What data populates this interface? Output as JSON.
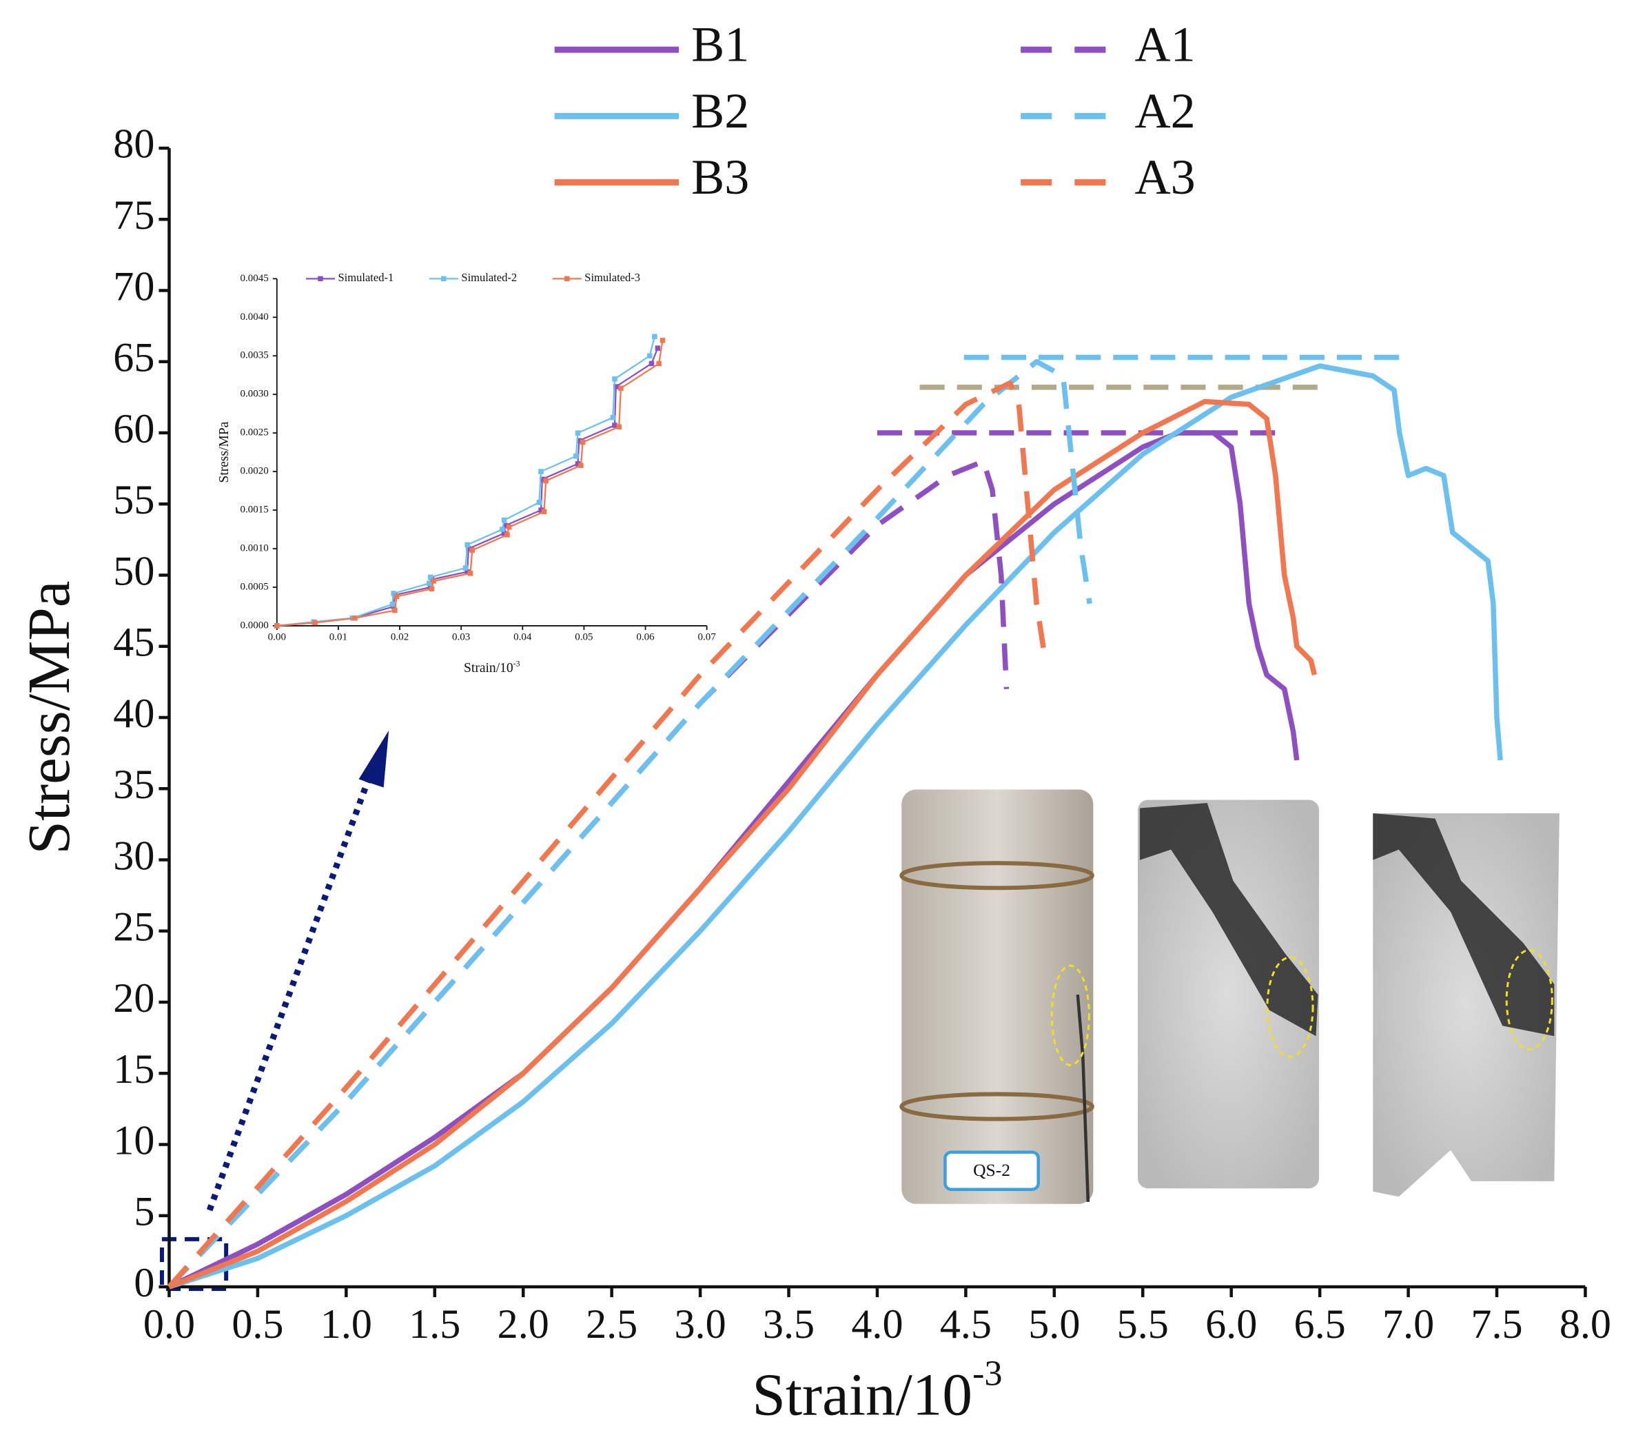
{
  "chart_data": [
    {
      "type": "line",
      "x_label": "Strain/10",
      "x_label_sup": "-3",
      "y_label": "Stress/MPa",
      "xlim": [
        0,
        8
      ],
      "ylim": [
        0,
        80
      ],
      "xticks": [
        {
          "value": 0,
          "label": "0.0"
        },
        {
          "value": 0.5,
          "label": "0.5"
        },
        {
          "value": 1,
          "label": "1.0"
        },
        {
          "value": 1.5,
          "label": "1.5"
        },
        {
          "value": 2,
          "label": "2.0"
        },
        {
          "value": 2.5,
          "label": "2.5"
        },
        {
          "value": 3,
          "label": "3.0"
        },
        {
          "value": 3.5,
          "label": "3.5"
        },
        {
          "value": 4,
          "label": "4.0"
        },
        {
          "value": 4.5,
          "label": "4.5"
        },
        {
          "value": 5,
          "label": "5.0"
        },
        {
          "value": 5.5,
          "label": "5.5"
        },
        {
          "value": 6,
          "label": "6.0"
        },
        {
          "value": 6.5,
          "label": "6.5"
        },
        {
          "value": 7,
          "label": "7.0"
        },
        {
          "value": 7.5,
          "label": "7.5"
        },
        {
          "value": 8,
          "label": "8.0"
        }
      ],
      "yticks": [
        0,
        5,
        10,
        15,
        20,
        25,
        30,
        35,
        40,
        45,
        50,
        55,
        60,
        65,
        70,
        75,
        80
      ],
      "series": [
        {
          "name": "B1",
          "color": "#8e4fc0",
          "dashed": false,
          "x": [
            0,
            0.5,
            1,
            1.5,
            2,
            2.5,
            3,
            3.5,
            4,
            4.5,
            5,
            5.5,
            5.7,
            5.9,
            6.0,
            6.05,
            6.1,
            6.15,
            6.2,
            6.3,
            6.35,
            6.37
          ],
          "values": [
            0,
            3,
            6.5,
            10.5,
            15,
            21,
            28,
            35.5,
            43,
            50,
            55,
            59,
            60,
            60,
            59,
            55,
            48,
            45,
            43,
            42,
            39,
            37
          ]
        },
        {
          "name": "B2",
          "color": "#6cc0ee",
          "dashed": false,
          "x": [
            0,
            0.5,
            1,
            1.5,
            2,
            2.5,
            3,
            3.5,
            4,
            4.5,
            5,
            5.5,
            6,
            6.5,
            6.8,
            6.92,
            6.95,
            7.0,
            7.1,
            7.2,
            7.25,
            7.35,
            7.45,
            7.48,
            7.5,
            7.52
          ],
          "values": [
            0,
            2,
            5,
            8.5,
            13,
            18.5,
            25,
            32,
            39.5,
            46.5,
            53,
            58.5,
            62.5,
            64.7,
            64,
            63,
            60,
            57,
            57.5,
            57,
            53,
            52,
            51,
            48,
            40,
            37
          ]
        },
        {
          "name": "B3",
          "color": "#f07850",
          "dashed": false,
          "x": [
            0,
            0.5,
            1,
            1.5,
            2,
            2.5,
            3,
            3.5,
            4,
            4.5,
            5,
            5.5,
            5.85,
            6.1,
            6.2,
            6.25,
            6.3,
            6.35,
            6.37,
            6.45,
            6.47
          ],
          "values": [
            0,
            2.5,
            6,
            10,
            15,
            21,
            28,
            35,
            43,
            50,
            56,
            60,
            62.2,
            62,
            61,
            57,
            50,
            47,
            45,
            44,
            43
          ]
        },
        {
          "name": "A1",
          "color": "#8e4fc0",
          "dashed": true,
          "x": [
            0,
            1,
            2,
            3,
            4,
            4.4,
            4.6,
            4.65,
            4.7,
            4.73
          ],
          "values": [
            0,
            13,
            27,
            41,
            53.5,
            57,
            58,
            56,
            50,
            42
          ]
        },
        {
          "name": "A2",
          "color": "#6cc0ee",
          "dashed": true,
          "x": [
            0,
            1,
            2,
            3,
            4,
            4.6,
            4.9,
            5.05,
            5.1,
            5.15,
            5.2
          ],
          "values": [
            0,
            13,
            27,
            41,
            54,
            62,
            65,
            64,
            58,
            52,
            48
          ]
        },
        {
          "name": "A3",
          "color": "#f07850",
          "dashed": true,
          "x": [
            0,
            1,
            2,
            3,
            4,
            4.5,
            4.75,
            4.8,
            4.85,
            4.9,
            4.95
          ],
          "values": [
            0,
            14,
            28.5,
            43,
            56,
            62,
            63.5,
            62,
            55,
            48,
            44
          ]
        }
      ],
      "peak_lines": [
        {
          "color": "#8e4fc0",
          "x": [
            4.0,
            6.27
          ],
          "value": 60
        },
        {
          "color": "#6cc0ee",
          "x": [
            4.49,
            6.99
          ],
          "value": 65.3
        },
        {
          "color": "#b0aa88",
          "x": [
            4.24,
            6.49
          ],
          "value": 63.2
        }
      ]
    },
    {
      "type": "line",
      "x_label": "Strain/10",
      "x_label_sup": "-3",
      "y_label": "Stress/MPa",
      "xlim": [
        0,
        0.07
      ],
      "ylim": [
        0,
        0.0045
      ],
      "xticks": [
        {
          "value": 0,
          "label": "0.00"
        },
        {
          "value": 0.01,
          "label": "0.01"
        },
        {
          "value": 0.02,
          "label": "0.02"
        },
        {
          "value": 0.03,
          "label": "0.03"
        },
        {
          "value": 0.04,
          "label": "0.04"
        },
        {
          "value": 0.05,
          "label": "0.05"
        },
        {
          "value": 0.06,
          "label": "0.06"
        },
        {
          "value": 0.07,
          "label": "0.07"
        }
      ],
      "yticks": [
        {
          "value": 0,
          "label": "0.0000"
        },
        {
          "value": 0.0005,
          "label": "0.0005"
        },
        {
          "value": 0.001,
          "label": "0.0010"
        },
        {
          "value": 0.0015,
          "label": "0.0015"
        },
        {
          "value": 0.002,
          "label": "0.0020"
        },
        {
          "value": 0.0025,
          "label": "0.0025"
        },
        {
          "value": 0.003,
          "label": "0.0030"
        },
        {
          "value": 0.0035,
          "label": "0.0035"
        },
        {
          "value": 0.004,
          "label": "0.0040"
        },
        {
          "value": 0.0045,
          "label": "0.0045"
        }
      ],
      "series": [
        {
          "name": "Simulated-1",
          "color": "#8e4fc0",
          "x": [
            0,
            0.006,
            0.0125,
            0.019,
            0.0192,
            0.025,
            0.0252,
            0.031,
            0.0312,
            0.037,
            0.0372,
            0.043,
            0.0432,
            0.049,
            0.0492,
            0.055,
            0.0552,
            0.061,
            0.062
          ],
          "values": [
            0,
            5e-05,
            0.0001,
            0.00025,
            0.0004,
            0.0005,
            0.0006,
            0.0007,
            0.001,
            0.0012,
            0.0013,
            0.0015,
            0.0019,
            0.0021,
            0.0024,
            0.0026,
            0.0031,
            0.0034,
            0.0036
          ]
        },
        {
          "name": "Simulated-2",
          "color": "#6cc0ee",
          "x": [
            0,
            0.006,
            0.0123,
            0.0188,
            0.019,
            0.0248,
            0.025,
            0.0307,
            0.031,
            0.0367,
            0.037,
            0.0427,
            0.043,
            0.0487,
            0.049,
            0.0547,
            0.055,
            0.0607,
            0.0615
          ],
          "values": [
            0,
            5e-05,
            0.0001,
            0.00028,
            0.00042,
            0.00055,
            0.00063,
            0.00075,
            0.00105,
            0.00125,
            0.00137,
            0.0016,
            0.002,
            0.0022,
            0.0025,
            0.0027,
            0.0032,
            0.0035,
            0.00375
          ]
        },
        {
          "name": "Simulated-3",
          "color": "#f07850",
          "x": [
            0,
            0.0062,
            0.0127,
            0.0192,
            0.0195,
            0.0252,
            0.0255,
            0.0315,
            0.0318,
            0.0375,
            0.0378,
            0.0435,
            0.0438,
            0.0495,
            0.0498,
            0.0557,
            0.056,
            0.0622,
            0.0628
          ],
          "values": [
            0,
            4e-05,
            0.0001,
            0.0002,
            0.00038,
            0.00048,
            0.00058,
            0.00068,
            0.00098,
            0.00118,
            0.00128,
            0.00148,
            0.00188,
            0.00208,
            0.00238,
            0.00258,
            0.00308,
            0.0034,
            0.0037
          ]
        }
      ]
    }
  ],
  "photo_label": "QS-2"
}
